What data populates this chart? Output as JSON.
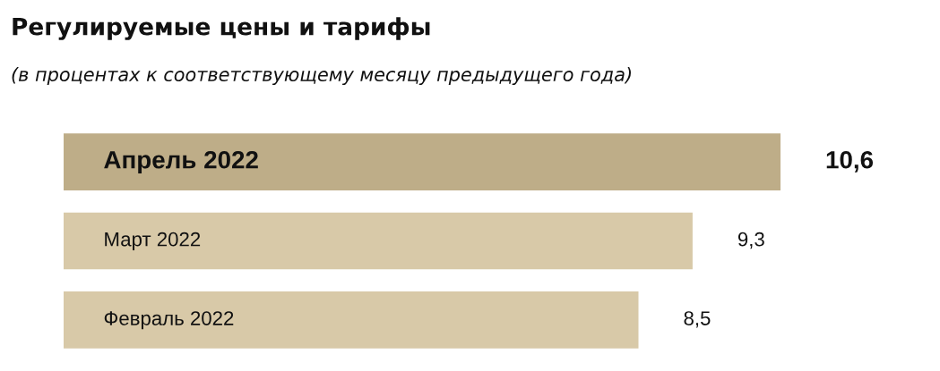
{
  "chart_data": {
    "type": "bar",
    "orientation": "horizontal",
    "title": "Регулируемые цены и тарифы",
    "subtitle": "(в процентах к соответствующему месяцу предыдущего года)",
    "categories": [
      "Апрель 2022",
      "Март 2022",
      "Февраль 2022"
    ],
    "values": [
      10.6,
      9.3,
      8.5
    ],
    "colors": [
      "#bead88",
      "#d8c9a8",
      "#d8c9a8"
    ],
    "value_labels": [
      "10,6",
      "9,3",
      "8,5"
    ]
  }
}
